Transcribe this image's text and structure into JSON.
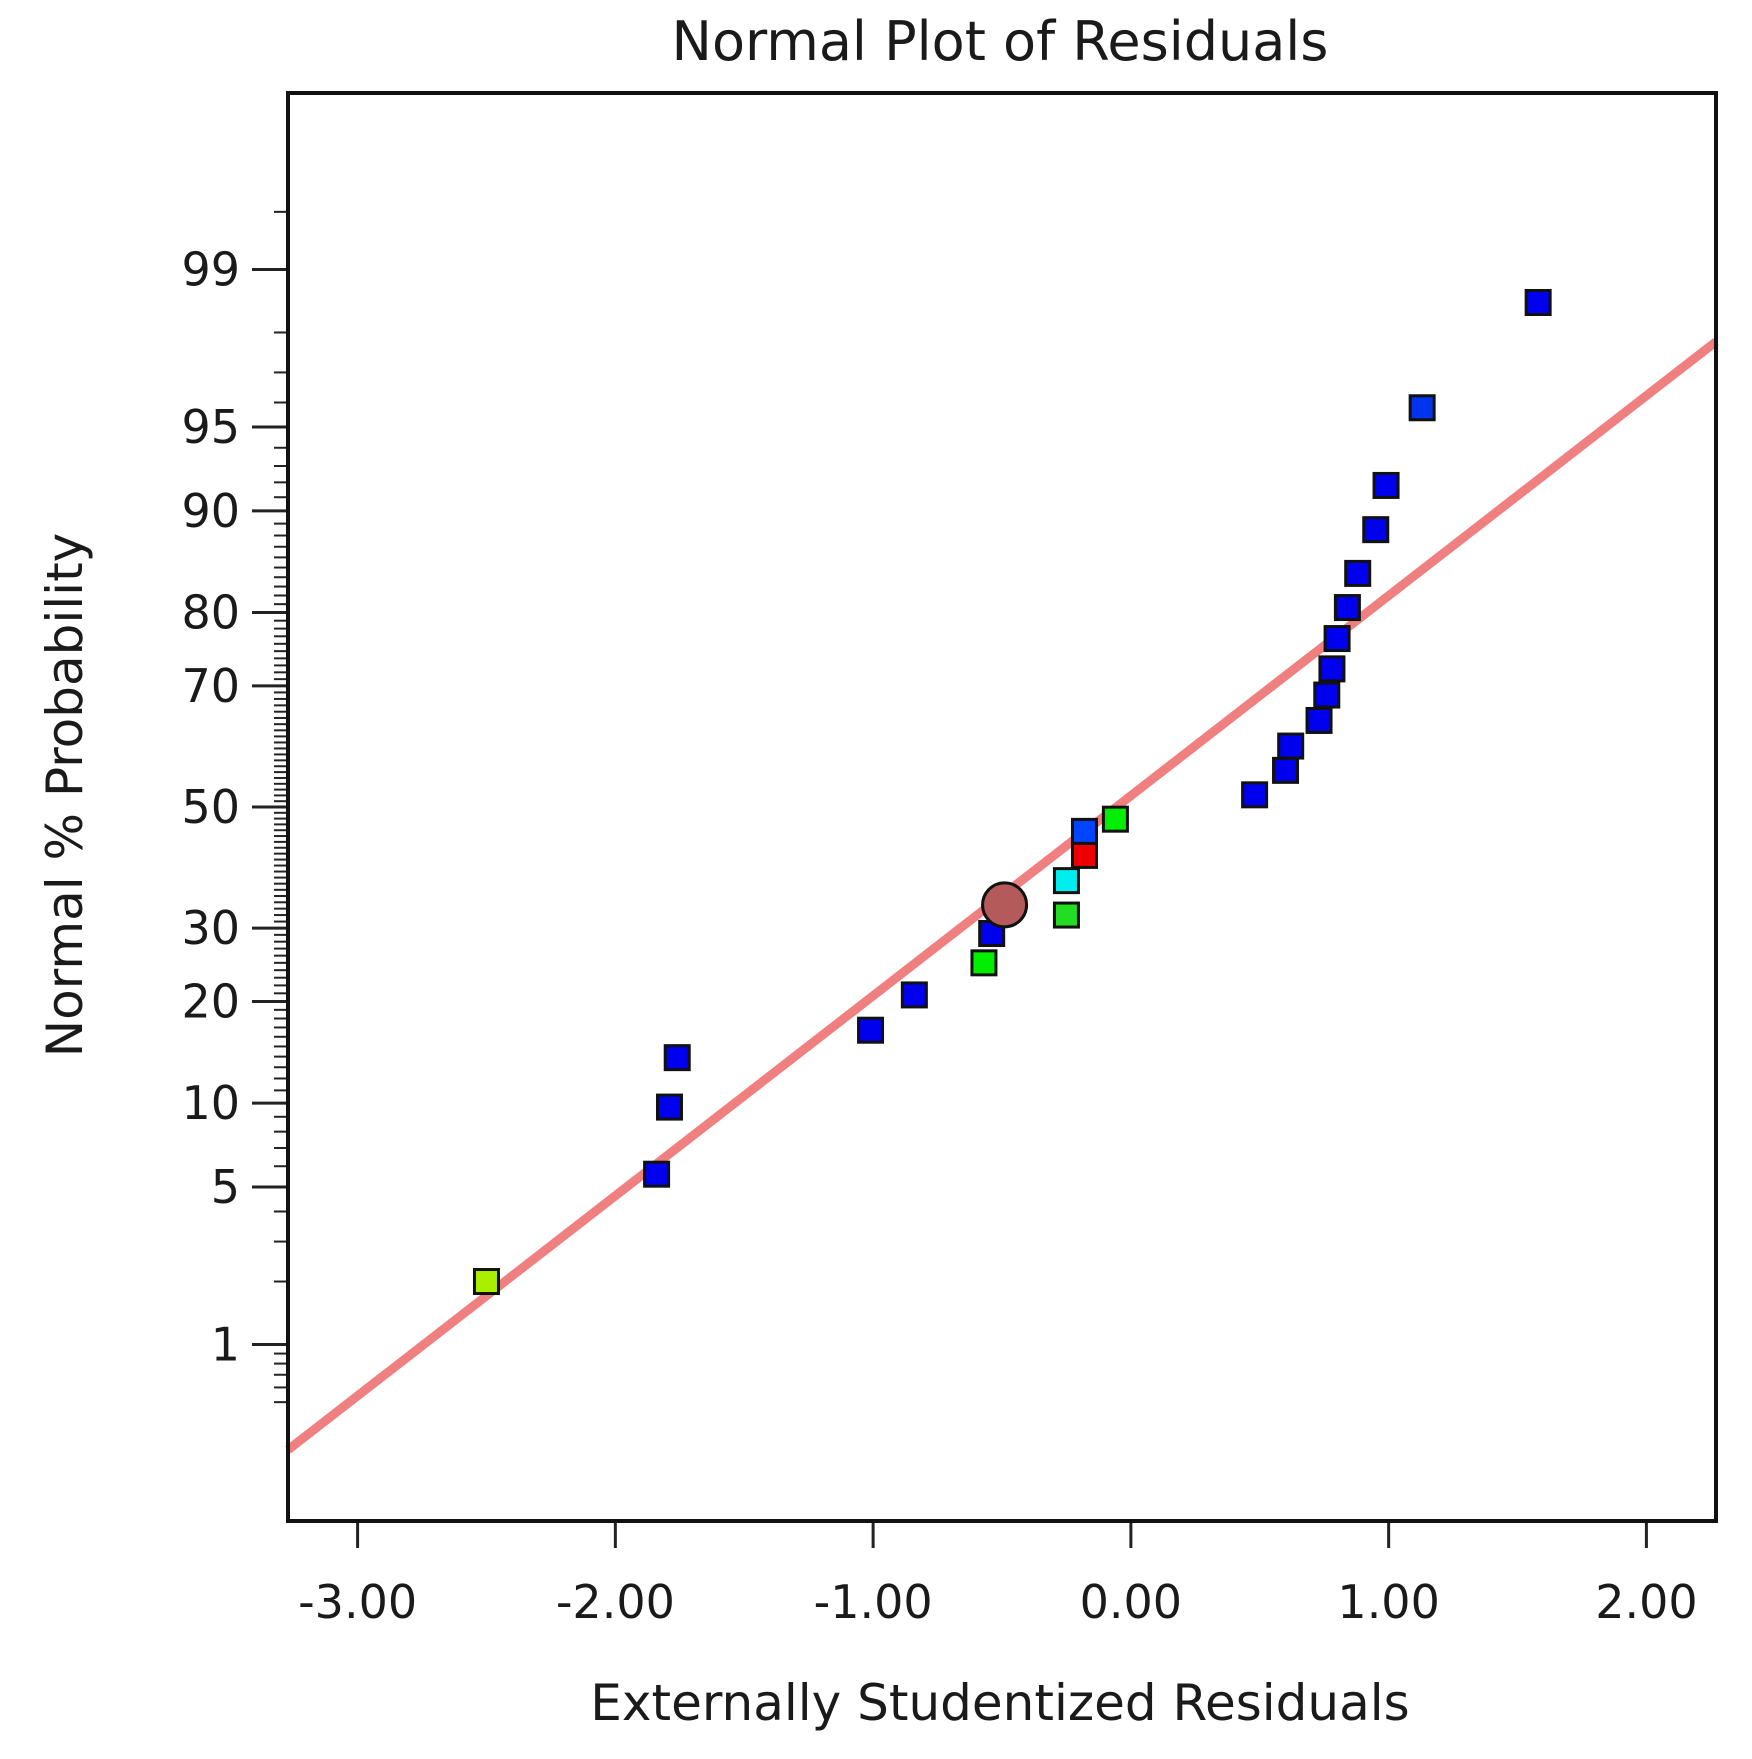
{
  "chart_data": {
    "type": "scatter",
    "title": "Normal Plot of Residuals",
    "xlabel": "Externally Studentized Residuals",
    "ylabel": "Normal % Probability",
    "xlim": [
      -3.27,
      2.27
    ],
    "ylim_percent": [
      0.1,
      99.9
    ],
    "x_ticks": [
      -3,
      -2,
      -1,
      0,
      1,
      2
    ],
    "x_tick_labels": [
      "-3.00",
      "-2.00",
      "-1.00",
      "0.00",
      "1.00",
      "2.00"
    ],
    "y_ticks": [
      1,
      5,
      10,
      20,
      30,
      50,
      70,
      80,
      90,
      95,
      99
    ],
    "y_tick_labels": [
      "1",
      "5",
      "10",
      "20",
      "30",
      "50",
      "70",
      "80",
      "90",
      "95",
      "99"
    ],
    "reference_line": {
      "x": [
        -3.27,
        2.27
      ],
      "y_percent": [
        0.27,
        97.8
      ],
      "color": "#f08080"
    },
    "points": [
      {
        "x": -2.5,
        "y": 2.0,
        "color": "#aaee00",
        "shape": "square"
      },
      {
        "x": -1.84,
        "y": 5.6,
        "color": "#0000ee",
        "shape": "square"
      },
      {
        "x": -1.79,
        "y": 9.7,
        "color": "#0000ee",
        "shape": "square"
      },
      {
        "x": -1.76,
        "y": 13.9,
        "color": "#0000ee",
        "shape": "square"
      },
      {
        "x": -1.01,
        "y": 16.7,
        "color": "#0000ee",
        "shape": "square"
      },
      {
        "x": -0.84,
        "y": 20.8,
        "color": "#0000ee",
        "shape": "square"
      },
      {
        "x": -0.57,
        "y": 25.0,
        "color": "#00ee00",
        "shape": "square"
      },
      {
        "x": -0.54,
        "y": 29.2,
        "color": "#0000ee",
        "shape": "square"
      },
      {
        "x": -0.49,
        "y": 33.6,
        "color": "#b55a5a",
        "shape": "circle"
      },
      {
        "x": -0.25,
        "y": 32.0,
        "color": "#22dd22",
        "shape": "square"
      },
      {
        "x": -0.25,
        "y": 37.5,
        "color": "#00eeee",
        "shape": "square"
      },
      {
        "x": -0.18,
        "y": 41.7,
        "color": "#ee0000",
        "shape": "square"
      },
      {
        "x": -0.18,
        "y": 45.8,
        "color": "#0044ff",
        "shape": "square"
      },
      {
        "x": -0.06,
        "y": 47.9,
        "color": "#00ee00",
        "shape": "square"
      },
      {
        "x": 0.48,
        "y": 52.1,
        "color": "#0000ee",
        "shape": "square"
      },
      {
        "x": 0.6,
        "y": 56.3,
        "color": "#0000ee",
        "shape": "square"
      },
      {
        "x": 0.62,
        "y": 60.4,
        "color": "#0000ee",
        "shape": "square"
      },
      {
        "x": 0.73,
        "y": 64.6,
        "color": "#0000ee",
        "shape": "square"
      },
      {
        "x": 0.76,
        "y": 68.6,
        "color": "#0000ee",
        "shape": "square"
      },
      {
        "x": 0.78,
        "y": 72.5,
        "color": "#0000ee",
        "shape": "square"
      },
      {
        "x": 0.8,
        "y": 76.7,
        "color": "#0000ee",
        "shape": "square"
      },
      {
        "x": 0.84,
        "y": 80.6,
        "color": "#0000ee",
        "shape": "square"
      },
      {
        "x": 0.88,
        "y": 84.4,
        "color": "#0000ee",
        "shape": "square"
      },
      {
        "x": 0.95,
        "y": 88.5,
        "color": "#0000ee",
        "shape": "square"
      },
      {
        "x": 0.99,
        "y": 91.8,
        "color": "#0000ee",
        "shape": "square"
      },
      {
        "x": 1.13,
        "y": 95.8,
        "color": "#0033ee",
        "shape": "square"
      },
      {
        "x": 1.58,
        "y": 98.55,
        "color": "#0000ee",
        "shape": "square"
      }
    ]
  }
}
